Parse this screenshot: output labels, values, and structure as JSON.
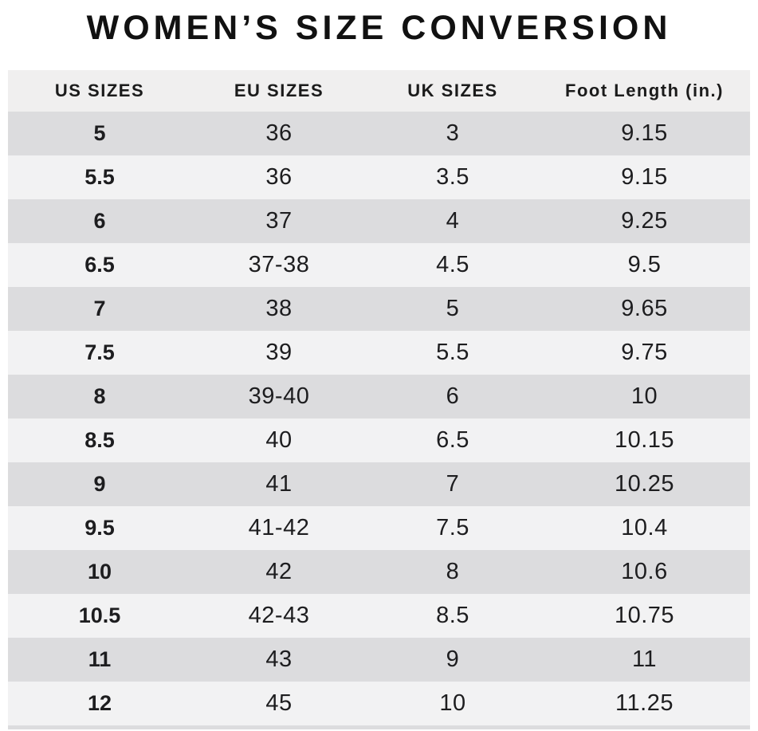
{
  "chart_data": {
    "type": "table",
    "title": "WOMEN’S SIZE CONVERSION",
    "headers": [
      "US SIZES",
      "EU SIZES",
      "UK SIZES",
      "Foot Length (in.)"
    ],
    "rows": [
      [
        "5",
        "36",
        "3",
        "9.15"
      ],
      [
        "5.5",
        "36",
        "3.5",
        "9.15"
      ],
      [
        "6",
        "37",
        "4",
        "9.25"
      ],
      [
        "6.5",
        "37-38",
        "4.5",
        "9.5"
      ],
      [
        "7",
        "38",
        "5",
        "9.65"
      ],
      [
        "7.5",
        "39",
        "5.5",
        "9.75"
      ],
      [
        "8",
        "39-40",
        "6",
        "10"
      ],
      [
        "8.5",
        "40",
        "6.5",
        "10.15"
      ],
      [
        "9",
        "41",
        "7",
        "10.25"
      ],
      [
        "9.5",
        "41-42",
        "7.5",
        "10.4"
      ],
      [
        "10",
        "42",
        "8",
        "10.6"
      ],
      [
        "10.5",
        "42-43",
        "8.5",
        "10.75"
      ],
      [
        "11",
        "43",
        "9",
        "11"
      ],
      [
        "12",
        "45",
        "10",
        "11.25"
      ]
    ],
    "layout": {
      "grid": false,
      "striped": true
    }
  },
  "colors": {
    "page_bg": "#ffffff",
    "header_bg": "#f0efef",
    "row_dark": "#dcdcde",
    "row_light": "#f2f2f3",
    "text": "#1d1d1f",
    "title_text": "#111111"
  }
}
